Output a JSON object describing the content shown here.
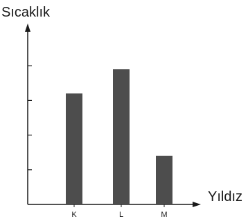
{
  "chart_data": {
    "type": "bar",
    "ylabel": "Sıcaklık",
    "xlabel": "Yıldız",
    "categories": [
      "K",
      "L",
      "M"
    ],
    "values": [
      3.2,
      3.9,
      1.4
    ],
    "ylim": [
      0,
      5
    ],
    "y_ticks": [
      1,
      2,
      3,
      4
    ],
    "y_tick_labels_shown": false,
    "grid": false,
    "legend": "none",
    "colors": {
      "bar": "#4d4d4d",
      "axis": "#1a1a1a"
    }
  }
}
